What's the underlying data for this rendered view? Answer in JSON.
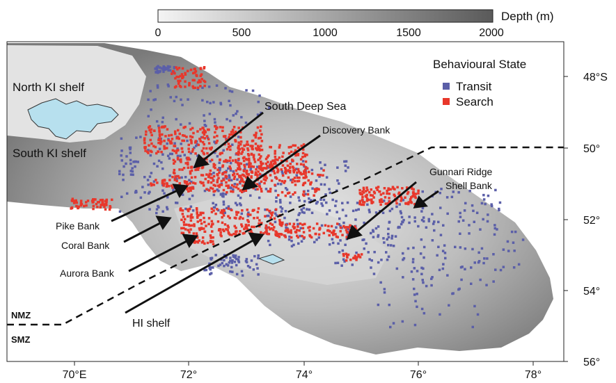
{
  "colorbar": {
    "title": "Depth (m)",
    "ticks": [
      "0",
      "500",
      "1000",
      "1500",
      "2000"
    ],
    "min_color": "#f4f4f4",
    "max_color": "#5a5a5a"
  },
  "legend": {
    "title": "Behavioural State",
    "items": [
      {
        "label": "Transit",
        "color": "#5b5fa8"
      },
      {
        "label": "Search",
        "color": "#e8372b"
      }
    ]
  },
  "axes": {
    "x_ticks": [
      "70°E",
      "72°",
      "74°",
      "76°",
      "78°"
    ],
    "y_ticks": [
      "48°S",
      "50°",
      "52°",
      "54°",
      "56°"
    ]
  },
  "places": {
    "north_ki": "North KI shelf",
    "south_ki": "South KI shelf",
    "south_deep_sea": "South Deep Sea",
    "discovery": "Discovery Bank",
    "gunnari": "Gunnari Ridge",
    "shell": "Shell Bank",
    "pike": "Pike Bank",
    "coral": "Coral Bank",
    "aurora": "Aurora Bank",
    "hi": "HI shelf",
    "nmz": "NMZ",
    "smz": "SMZ"
  },
  "colors": {
    "island": "#b7e0ee",
    "transit": "#5b5fa8",
    "search": "#e8372b"
  }
}
